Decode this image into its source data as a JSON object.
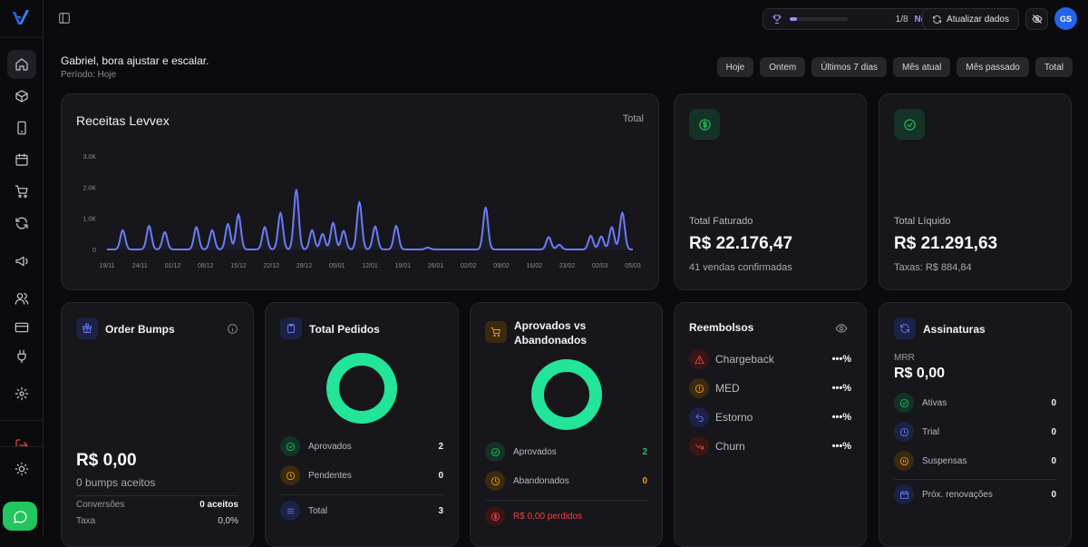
{
  "header": {
    "goal": {
      "icon": "trophy-icon",
      "progress": 0.12,
      "count": "1/8",
      "label": "Network"
    },
    "refresh_label": "Atualizar dados",
    "hide_icon": "eye-off-icon",
    "avatar_initials": "GS"
  },
  "sidebar": {
    "items": [
      {
        "icon": "home-icon",
        "active": true
      },
      {
        "icon": "box-icon"
      },
      {
        "icon": "smartphone-icon"
      },
      {
        "icon": "calendar-icon"
      },
      {
        "icon": "cart-icon"
      },
      {
        "icon": "refresh-icon"
      },
      {
        "icon": "megaphone-icon"
      },
      {
        "icon": "users-icon"
      },
      {
        "icon": "credit-card-icon"
      },
      {
        "icon": "plug-icon"
      },
      {
        "icon": "settings-icon"
      },
      {
        "icon": "logout-icon"
      },
      {
        "icon": "sun-icon"
      },
      {
        "icon": "chat-icon"
      }
    ]
  },
  "greeting": "Gabriel, bora ajustar e escalar.",
  "period": "Período: Hoje",
  "filters": [
    "Hoje",
    "Ontem",
    "Últimos 7 dias",
    "Mês atual",
    "Mês passado",
    "Total"
  ],
  "revenue_card": {
    "title": "Receitas Levvex",
    "range": "Total"
  },
  "chart_data": {
    "type": "line",
    "title": "Receitas Levvex",
    "x_ticks": [
      "19/11",
      "24/11",
      "01/12",
      "08/12",
      "15/12",
      "22/12",
      "29/12",
      "05/01",
      "12/01",
      "19/01",
      "26/01",
      "02/02",
      "09/02",
      "16/02",
      "23/02",
      "02/03",
      "05/03"
    ],
    "y_ticks": [
      "0",
      "1.0K",
      "2.0K",
      "3.0K"
    ],
    "ylim": [
      0,
      3000
    ],
    "color": "#6b7cf6",
    "peaks": [
      {
        "x": 0.03,
        "y": 620
      },
      {
        "x": 0.08,
        "y": 760
      },
      {
        "x": 0.11,
        "y": 560
      },
      {
        "x": 0.17,
        "y": 720
      },
      {
        "x": 0.2,
        "y": 620
      },
      {
        "x": 0.23,
        "y": 820
      },
      {
        "x": 0.25,
        "y": 1130
      },
      {
        "x": 0.3,
        "y": 720
      },
      {
        "x": 0.33,
        "y": 1180
      },
      {
        "x": 0.36,
        "y": 1920
      },
      {
        "x": 0.39,
        "y": 620
      },
      {
        "x": 0.41,
        "y": 500
      },
      {
        "x": 0.43,
        "y": 860
      },
      {
        "x": 0.45,
        "y": 600
      },
      {
        "x": 0.48,
        "y": 1530
      },
      {
        "x": 0.51,
        "y": 740
      },
      {
        "x": 0.55,
        "y": 760
      },
      {
        "x": 0.61,
        "y": 60
      },
      {
        "x": 0.72,
        "y": 1350
      },
      {
        "x": 0.84,
        "y": 400
      },
      {
        "x": 0.86,
        "y": 150
      },
      {
        "x": 0.92,
        "y": 440
      },
      {
        "x": 0.94,
        "y": 420
      },
      {
        "x": 0.96,
        "y": 720
      },
      {
        "x": 0.98,
        "y": 1180
      }
    ]
  },
  "kpis": [
    {
      "icon": "dollar-icon",
      "label": "Total Faturado",
      "value": "R$ 22.176,47",
      "sub": "41 vendas confirmadas"
    },
    {
      "icon": "check-circle-icon",
      "label": "Total Líquido",
      "value": "R$ 21.291,63",
      "sub": "Taxas: R$ 884,84"
    }
  ],
  "order_bumps": {
    "title": "Order Bumps",
    "value": "R$ 0,00",
    "sub": "0 bumps aceitos",
    "rows": [
      {
        "label": "Conversões",
        "value": "0 aceitos"
      },
      {
        "label": "Taxa",
        "value": "0,0%"
      }
    ]
  },
  "total_pedidos": {
    "title": "Total Pedidos",
    "ring_color": "#22e59a",
    "rows": [
      {
        "icon": "check-circle-icon",
        "label": "Aprovados",
        "value": "2",
        "color": "#22c55e"
      },
      {
        "icon": "clock-icon",
        "label": "Pendentes",
        "value": "0",
        "color": "#f59e0b"
      },
      {
        "icon": "list-icon",
        "label": "Total",
        "value": "3",
        "color": "#6b7cf6"
      }
    ]
  },
  "aprovados_abandonados": {
    "title_line1": "Aprovados vs",
    "title_line2": "Abandonados",
    "ring_color": "#22e59a",
    "rows": [
      {
        "icon": "check-circle-icon",
        "label": "Aprovados",
        "value": "2",
        "color": "#22c55e"
      },
      {
        "icon": "clock-icon",
        "label": "Abandonados",
        "value": "0",
        "color": "#f59e0b"
      }
    ],
    "lost": "R$ 0,00 perdidos"
  },
  "reembolsos": {
    "title": "Reembolsos",
    "rows": [
      {
        "icon": "alert-triangle-icon",
        "label": "Chargeback",
        "value": "•••%",
        "color": "#ef4444"
      },
      {
        "icon": "alert-circle-icon",
        "label": "MED",
        "value": "•••%",
        "color": "#f59e0b"
      },
      {
        "icon": "undo-icon",
        "label": "Estorno",
        "value": "•••%",
        "color": "#6b7cf6"
      },
      {
        "icon": "trending-down-icon",
        "label": "Churn",
        "value": "•••%",
        "color": "#ef4444"
      }
    ]
  },
  "assinaturas": {
    "title": "Assinaturas",
    "mrr_label": "MRR",
    "mrr_value": "R$ 0,00",
    "rows": [
      {
        "icon": "check-circle-icon",
        "label": "Ativas",
        "value": "0",
        "color": "#22c55e"
      },
      {
        "icon": "clock-icon",
        "label": "Trial",
        "value": "0",
        "color": "#6b7cf6"
      },
      {
        "icon": "pause-icon",
        "label": "Suspensas",
        "value": "0",
        "color": "#f59e0b"
      },
      {
        "icon": "calendar-icon",
        "label": "Próx. renovações",
        "value": "0",
        "color": "#6b7cf6"
      }
    ]
  }
}
